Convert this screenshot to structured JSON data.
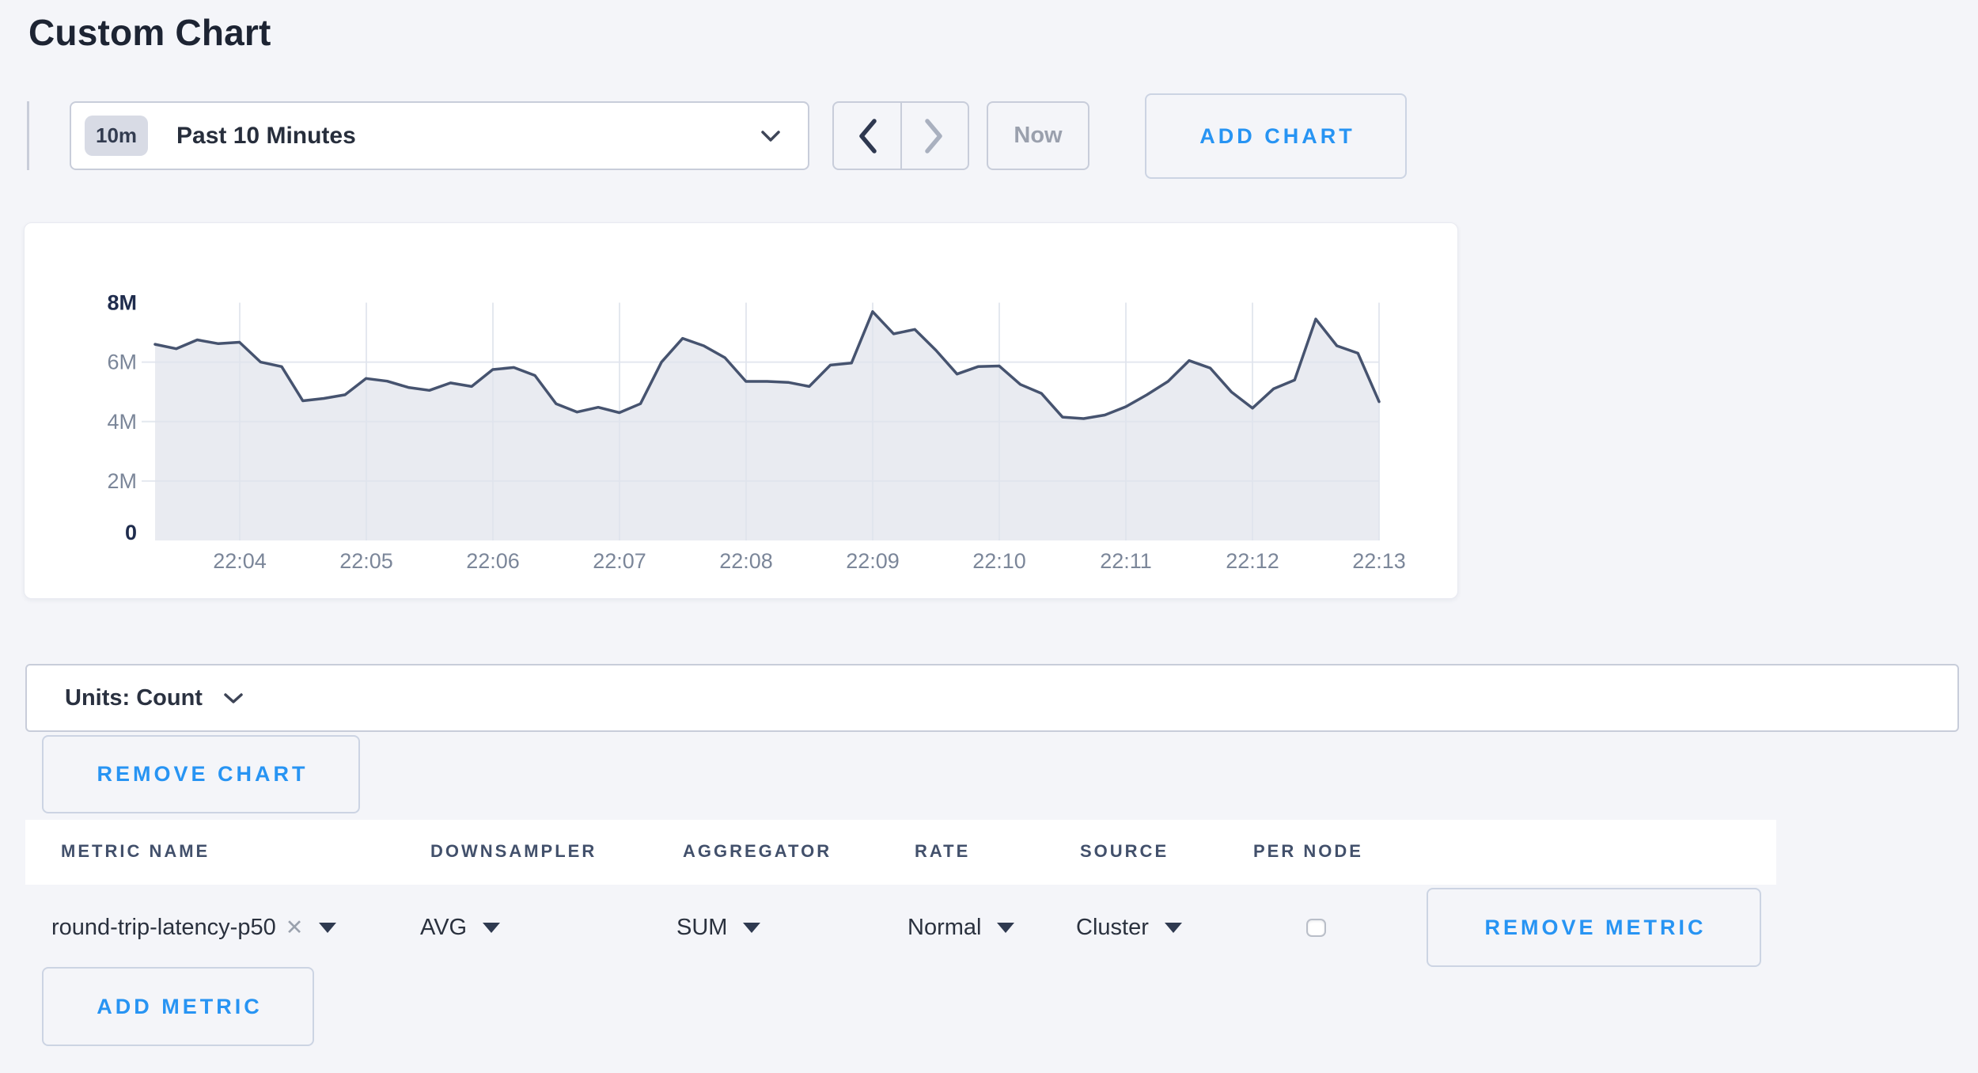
{
  "page": {
    "title": "Custom Chart"
  },
  "colors": {
    "accent_blue": "#2794f3",
    "chart_line": "#46536f",
    "chart_fill": "#e9ebf1",
    "grid": "#e0e4ed",
    "axis_gray": "#7b8699",
    "axis_dark": "#1f2c4d"
  },
  "toolbar": {
    "time_range": {
      "badge": "10m",
      "label": "Past 10 Minutes"
    },
    "now_label": "Now",
    "add_chart_label": "ADD CHART"
  },
  "chart_data": {
    "type": "area",
    "title": "",
    "xlabel": "",
    "ylabel": "",
    "unit": "Count",
    "x_start": "22:03:20",
    "x_end": "22:13:00",
    "interval_seconds": 10,
    "x_ticks": [
      "22:04",
      "22:05",
      "22:06",
      "22:07",
      "22:08",
      "22:09",
      "22:10",
      "22:11",
      "22:12",
      "22:13"
    ],
    "y_ticks": [
      "0",
      "2M",
      "4M",
      "6M",
      "8M"
    ],
    "ylim_millions": [
      0,
      8
    ],
    "grid": true,
    "legend": "none",
    "values_millions": [
      6.6,
      6.45,
      6.75,
      6.62,
      6.67,
      6.0,
      5.85,
      4.7,
      4.78,
      4.9,
      5.45,
      5.36,
      5.15,
      5.05,
      5.3,
      5.18,
      5.75,
      5.82,
      5.55,
      4.6,
      4.32,
      4.48,
      4.3,
      4.6,
      6.0,
      6.8,
      6.55,
      6.15,
      5.35,
      5.35,
      5.32,
      5.18,
      5.9,
      5.97,
      7.7,
      6.95,
      7.1,
      6.4,
      5.6,
      5.85,
      5.87,
      5.25,
      4.95,
      4.15,
      4.1,
      4.22,
      4.5,
      4.9,
      5.35,
      6.05,
      5.8,
      5.0,
      4.45,
      5.1,
      5.4,
      7.45,
      6.55,
      6.3,
      4.67
    ]
  },
  "units_bar": {
    "label": "Units: Count"
  },
  "remove_chart_label": "REMOVE CHART",
  "metrics_table": {
    "columns": [
      "METRIC NAME",
      "DOWNSAMPLER",
      "AGGREGATOR",
      "RATE",
      "SOURCE",
      "PER NODE"
    ],
    "rows": [
      {
        "metric_name": "round-trip-latency-p50",
        "remove_tag": "✕",
        "downsampler": "AVG",
        "aggregator": "SUM",
        "rate": "Normal",
        "source": "Cluster",
        "per_node_checked": false,
        "remove_label": "REMOVE METRIC"
      }
    ],
    "add_metric_label": "ADD METRIC"
  }
}
